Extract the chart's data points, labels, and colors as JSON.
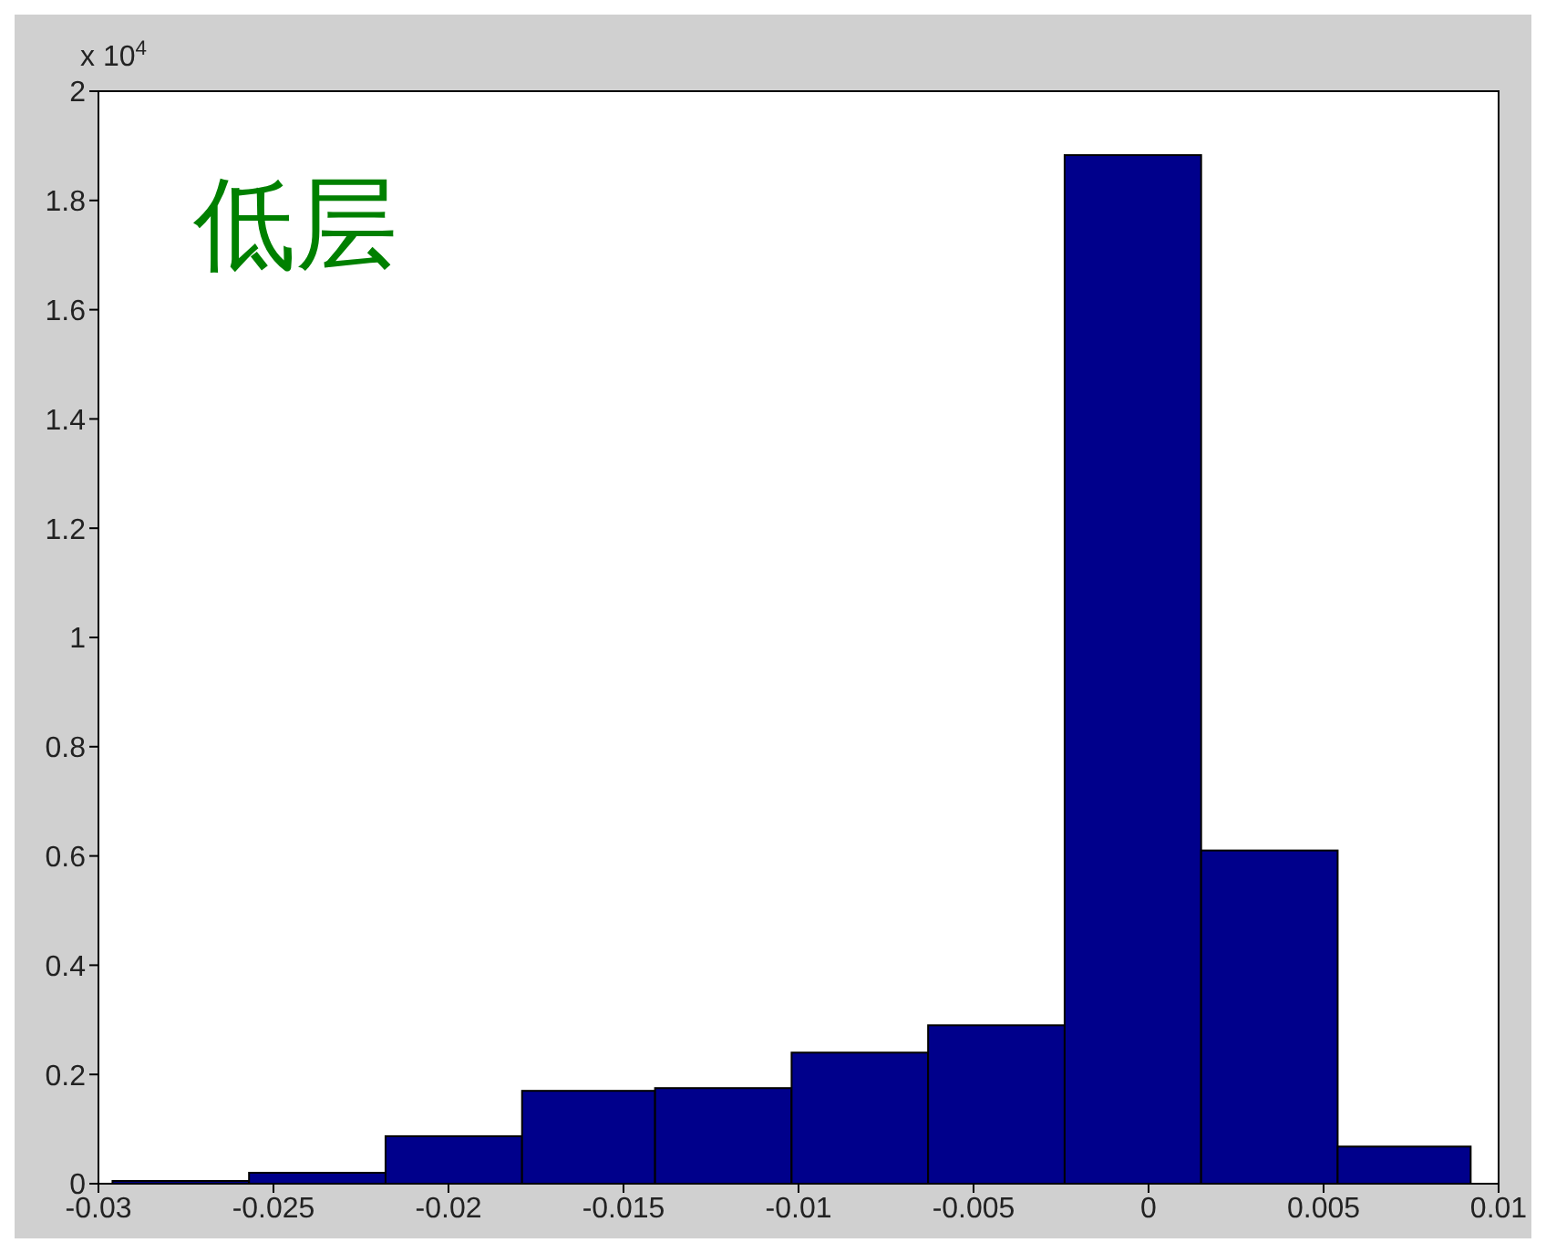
{
  "chart_data": {
    "type": "histogram",
    "title": "低层",
    "annotations": [
      "x 10$^{4}$"
    ],
    "bins": [
      -0.0296,
      -0.0257,
      -0.0218,
      -0.0179,
      -0.0141,
      -0.0102,
      -0.0063,
      -0.0024,
      0.0015,
      0.0054,
      0.0092
    ],
    "values": [
      0.005,
      0.02,
      0.087,
      0.17,
      0.175,
      0.24,
      0.29,
      1.883,
      0.61,
      0.068
    ],
    "color": "#00008b",
    "xlim": [
      -0.03,
      0.01
    ],
    "xticks": [
      -0.03,
      -0.025,
      -0.02,
      -0.015,
      -0.01,
      -0.005,
      0,
      0.005,
      0.01
    ],
    "ylim": [
      0,
      2
    ],
    "yticks": [
      0,
      0.2,
      0.4,
      0.6,
      0.8,
      1,
      1.2,
      1.4,
      1.6,
      1.8,
      2
    ],
    "grid": false
  }
}
